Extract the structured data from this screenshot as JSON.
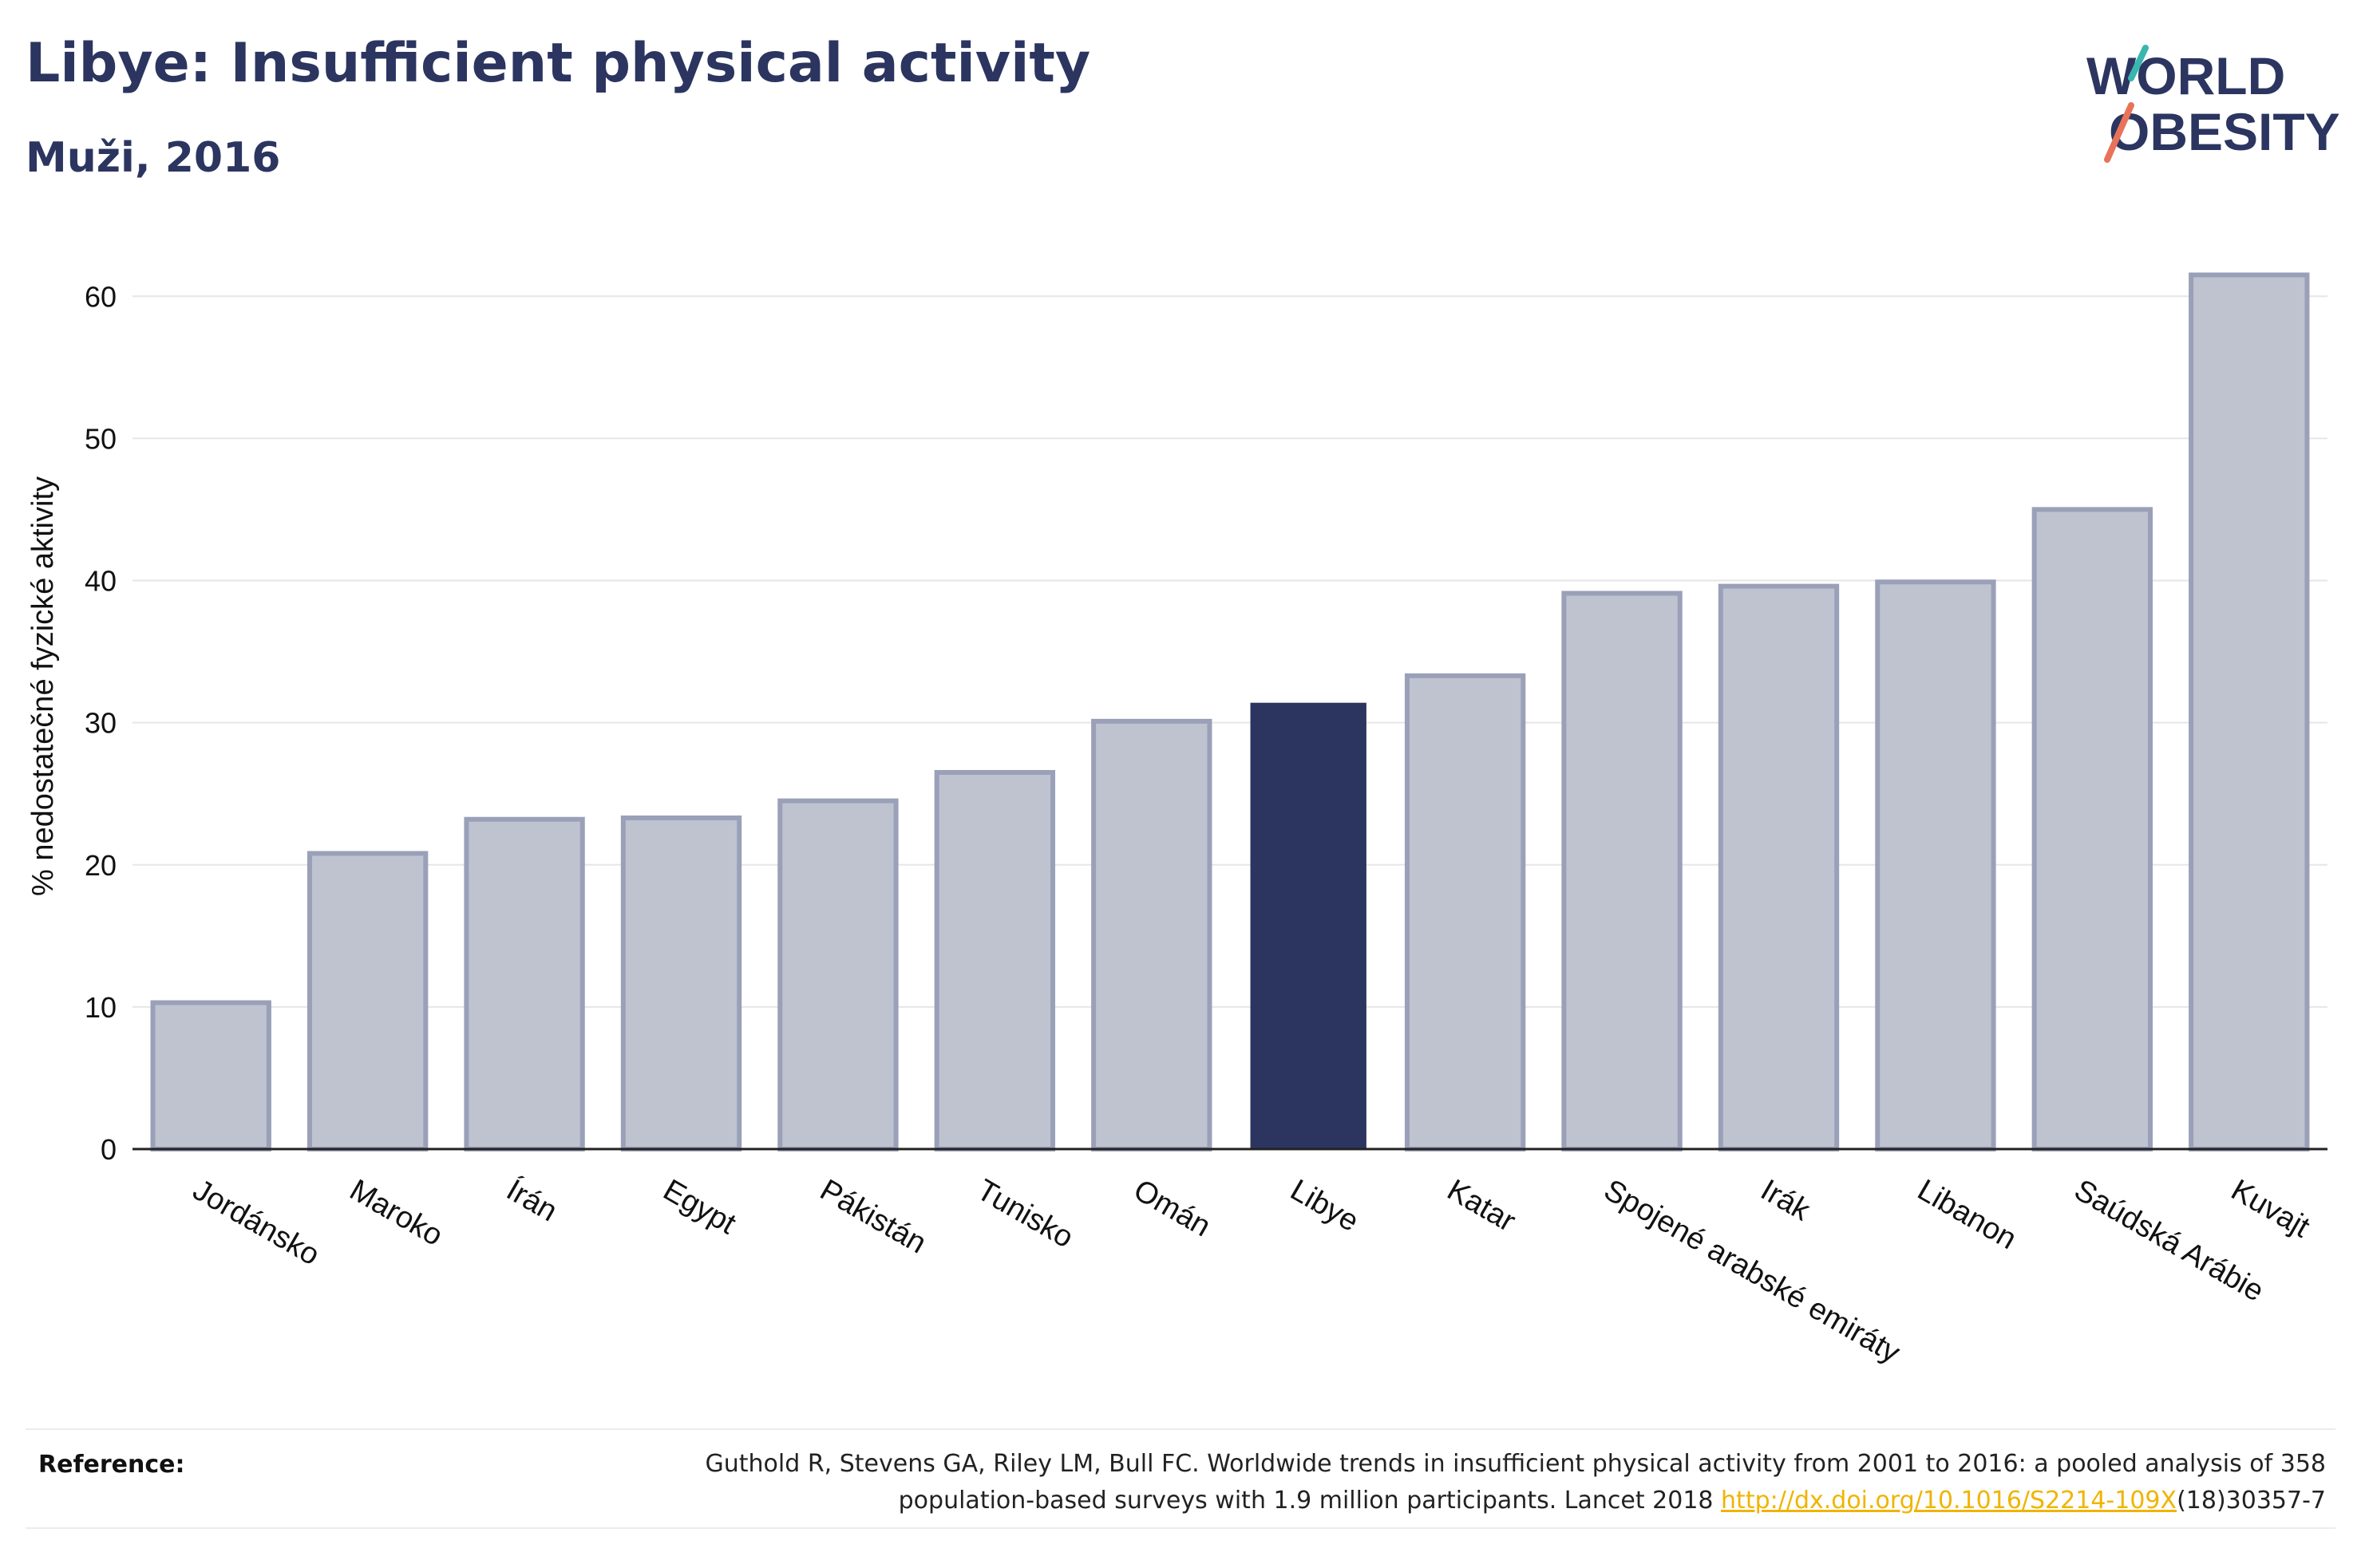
{
  "header": {
    "title": "Libye: Insufficient physical activity",
    "subtitle": "Muži, 2016"
  },
  "logo": {
    "line1": "WORLD",
    "line2": "OBESITY"
  },
  "chart_data": {
    "type": "bar",
    "ylabel": "% nedostatečné fyzické aktivity",
    "ylim": [
      0,
      64
    ],
    "yticks": [
      0,
      10,
      20,
      30,
      40,
      50,
      60
    ],
    "grid": true,
    "categories": [
      "Jordánsko",
      "Maroko",
      "Írán",
      "Egypt",
      "Pákistán",
      "Tunisko",
      "Omán",
      "Libye",
      "Katar",
      "Spojené arabské emiráty",
      "Irák",
      "Libanon",
      "Saúdská Arábie",
      "Kuvajt"
    ],
    "values": [
      10.3,
      20.8,
      23.2,
      23.3,
      24.5,
      26.5,
      30.1,
      31.4,
      33.3,
      39.1,
      39.6,
      39.9,
      45.0,
      61.5
    ],
    "highlight": "Libye",
    "colors": {
      "bar": "#bfc3d0",
      "bar_edge": "#9aa0b8",
      "highlight": "#2b3560"
    }
  },
  "reference": {
    "label": "Reference:",
    "text_line1": "Guthold R, Stevens GA, Riley LM, Bull FC. Worldwide trends in insufficient physical activity from 2001 to 2016: a pooled analysis of 358",
    "text_line2_pre": "population-based surveys with 1.9 million participants. Lancet 2018 ",
    "link": "http://dx.doi.org/10.1016/S2214-109X",
    "text_line2_post": "(18)30357-7"
  }
}
